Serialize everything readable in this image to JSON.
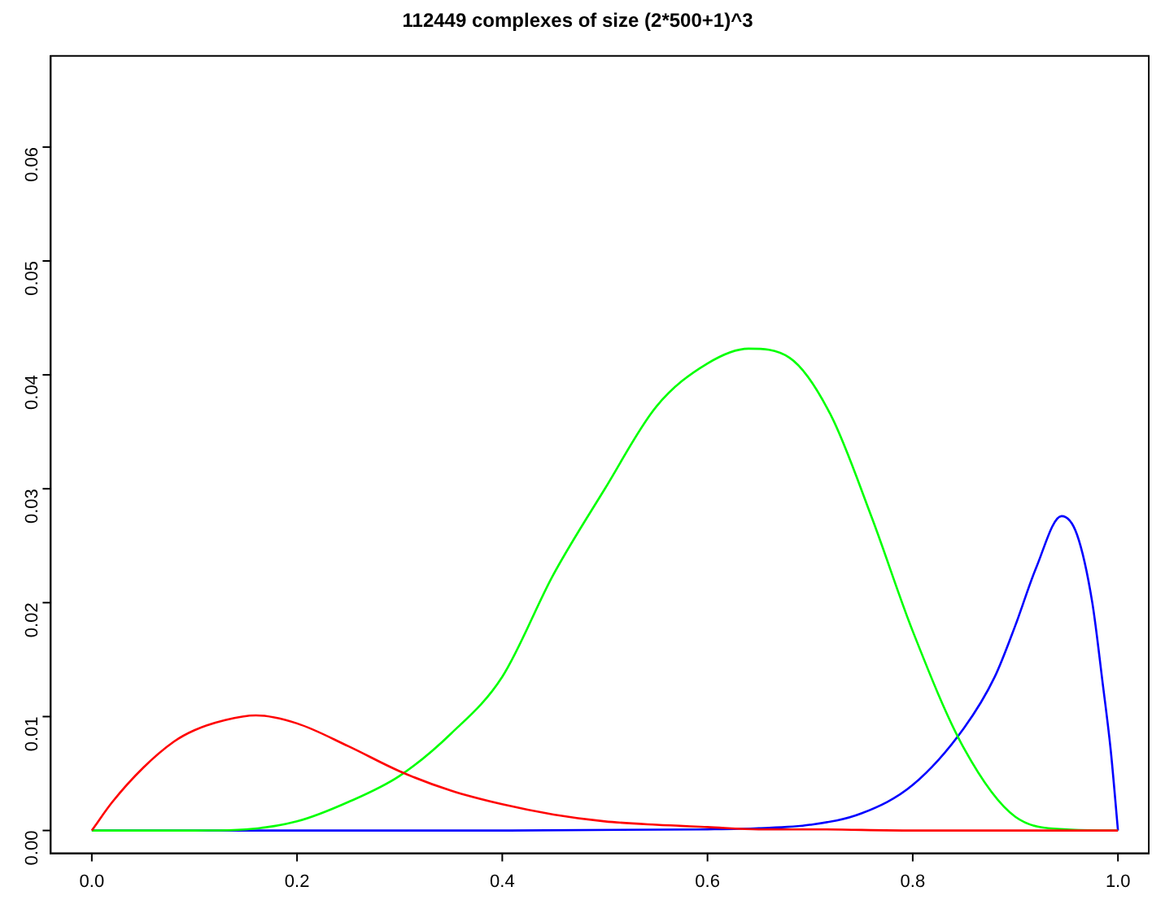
{
  "chart_data": {
    "type": "line",
    "title": "112449 complexes of size (2*500+1)^3",
    "xlim": [
      -0.04,
      1.03
    ],
    "ylim": [
      -0.002,
      0.068
    ],
    "xticks": [
      {
        "value": 0,
        "label": "0.0"
      },
      {
        "value": 0.2,
        "label": "0.2"
      },
      {
        "value": 0.4,
        "label": "0.4"
      },
      {
        "value": 0.6,
        "label": "0.6"
      },
      {
        "value": 0.8,
        "label": "0.8"
      },
      {
        "value": 1,
        "label": "1.0"
      }
    ],
    "yticks": [
      {
        "value": 0,
        "label": "0.00"
      },
      {
        "value": 0.01,
        "label": "0.01"
      },
      {
        "value": 0.02,
        "label": "0.02"
      },
      {
        "value": 0.03,
        "label": "0.03"
      },
      {
        "value": 0.04,
        "label": "0.04"
      },
      {
        "value": 0.05,
        "label": "0.05"
      },
      {
        "value": 0.06,
        "label": "0.06"
      }
    ],
    "grid": false,
    "legend": false,
    "marker": "none",
    "line_style": "solid",
    "series": [
      {
        "color": "#ff0000",
        "x": [
          0,
          0.02,
          0.05,
          0.08,
          0.1,
          0.13,
          0.16,
          0.2,
          0.25,
          0.3,
          0.35,
          0.4,
          0.45,
          0.5,
          0.55,
          0.6,
          0.65,
          0.7,
          0.8,
          0.9,
          1.0
        ],
        "values": [
          0,
          0.0025,
          0.0055,
          0.0078,
          0.0088,
          0.0097,
          0.0101,
          0.0094,
          0.0074,
          0.0052,
          0.0035,
          0.0023,
          0.0014,
          0.0008,
          0.0005,
          0.0003,
          0.0001,
          0.0001,
          0,
          0,
          0
        ]
      },
      {
        "color": "#00ff00",
        "x": [
          0,
          0.1,
          0.15,
          0.2,
          0.25,
          0.3,
          0.35,
          0.4,
          0.45,
          0.5,
          0.55,
          0.6,
          0.64,
          0.68,
          0.72,
          0.76,
          0.8,
          0.85,
          0.9,
          0.95,
          1.0
        ],
        "values": [
          0,
          0,
          0.0001,
          0.0008,
          0.0025,
          0.0048,
          0.0085,
          0.0135,
          0.0225,
          0.03,
          0.0372,
          0.041,
          0.0423,
          0.0415,
          0.0365,
          0.0275,
          0.0175,
          0.0072,
          0.0012,
          0.0001,
          0
        ]
      },
      {
        "color": "#0000ff",
        "x": [
          0,
          0.2,
          0.4,
          0.6,
          0.65,
          0.7,
          0.75,
          0.8,
          0.85,
          0.88,
          0.9,
          0.92,
          0.945,
          0.96,
          0.975,
          0.985,
          0.993,
          1.0
        ],
        "values": [
          0,
          0,
          0,
          0.0001,
          0.0002,
          0.0005,
          0.0015,
          0.004,
          0.009,
          0.0135,
          0.018,
          0.023,
          0.0276,
          0.026,
          0.02,
          0.013,
          0.007,
          0
        ]
      }
    ]
  }
}
